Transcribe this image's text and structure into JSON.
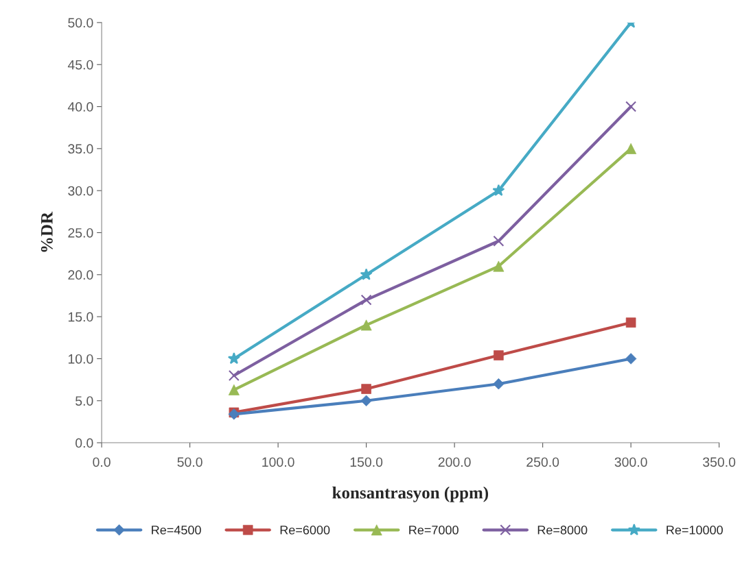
{
  "chart_data": {
    "type": "line",
    "xlabel": "konsantrasyon (ppm)",
    "ylabel": "%DR",
    "xlim": [
      0,
      350
    ],
    "ylim": [
      0,
      50
    ],
    "xticks": [
      {
        "value": 0,
        "label": "0.0"
      },
      {
        "value": 50,
        "label": "50.0"
      },
      {
        "value": 100,
        "label": "100.0"
      },
      {
        "value": 150,
        "label": "150.0"
      },
      {
        "value": 200,
        "label": "200.0"
      },
      {
        "value": 250,
        "label": "250.0"
      },
      {
        "value": 300,
        "label": "300.0"
      },
      {
        "value": 350,
        "label": "350.0"
      }
    ],
    "yticks": [
      {
        "value": 0,
        "label": "0.0"
      },
      {
        "value": 5,
        "label": "5.0"
      },
      {
        "value": 10,
        "label": "10.0"
      },
      {
        "value": 15,
        "label": "15.0"
      },
      {
        "value": 20,
        "label": "20.0"
      },
      {
        "value": 25,
        "label": "25.0"
      },
      {
        "value": 30,
        "label": "30.0"
      },
      {
        "value": 35,
        "label": "35.0"
      },
      {
        "value": 40,
        "label": "40.0"
      },
      {
        "value": 45,
        "label": "45.0"
      },
      {
        "value": 50,
        "label": "50.0"
      }
    ],
    "x": [
      75,
      150,
      225,
      300
    ],
    "series": [
      {
        "name": "Re=4500",
        "color": "#4a7ebb",
        "marker": "diamond",
        "values": [
          3.4,
          5.0,
          7.0,
          10.0
        ]
      },
      {
        "name": "Re=6000",
        "color": "#be4b48",
        "marker": "square",
        "values": [
          3.6,
          6.4,
          10.4,
          14.3
        ]
      },
      {
        "name": "Re=7000",
        "color": "#98b954",
        "marker": "triangle",
        "values": [
          6.3,
          14.0,
          21.0,
          35.0
        ]
      },
      {
        "name": "Re=8000",
        "color": "#7d5fa0",
        "marker": "cross",
        "values": [
          8.0,
          17.0,
          24.0,
          40.0
        ]
      },
      {
        "name": "Re=10000",
        "color": "#46aac5",
        "marker": "star",
        "values": [
          10.0,
          20.0,
          30.0,
          50.0
        ]
      }
    ],
    "grid": false,
    "legend": "bottom",
    "line_style": "solid"
  }
}
